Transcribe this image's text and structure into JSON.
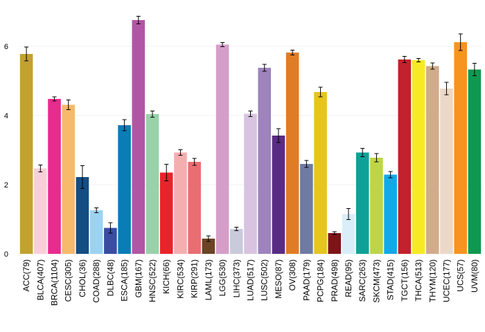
{
  "chart_data": {
    "type": "bar",
    "categories": [
      "ACC(79)",
      "BLCA(407)",
      "BRCA(1104)",
      "CESC(305)",
      "CHOL(36)",
      "COAD(288)",
      "DLBC(48)",
      "ESCA(185)",
      "GBM(167)",
      "HNSC(522)",
      "KICH(66)",
      "KIRC(534)",
      "KIRP(291)",
      "LAML(173)",
      "LGG(530)",
      "LIHC(373)",
      "LUAD(517)",
      "LUSC(502)",
      "MESO(87)",
      "OV(308)",
      "PAAD(179)",
      "PCPG(184)",
      "PRAD(498)",
      "READ(95)",
      "SARC(263)",
      "SKCM(473)",
      "STAD(415)",
      "TGCT(156)",
      "THCA(513)",
      "THYM(120)",
      "UCEC(177)",
      "UCS(57)",
      "UVM(80)"
    ],
    "values": [
      5.78,
      2.47,
      4.48,
      4.31,
      2.22,
      1.26,
      0.75,
      3.72,
      6.76,
      4.04,
      2.35,
      2.93,
      2.66,
      0.44,
      6.05,
      0.72,
      4.05,
      5.38,
      3.42,
      5.82,
      2.6,
      4.68,
      0.6,
      1.15,
      2.93,
      2.78,
      2.29,
      5.62,
      5.6,
      5.43,
      4.78,
      6.12,
      5.33
    ],
    "errors": [
      0.2,
      0.1,
      0.06,
      0.14,
      0.33,
      0.07,
      0.15,
      0.16,
      0.11,
      0.09,
      0.24,
      0.08,
      0.1,
      0.08,
      0.06,
      0.05,
      0.08,
      0.1,
      0.2,
      0.07,
      0.1,
      0.14,
      0.04,
      0.16,
      0.12,
      0.12,
      0.09,
      0.09,
      0.05,
      0.09,
      0.18,
      0.24,
      0.18
    ],
    "colors": [
      "#c2a22f",
      "#f9cfd7",
      "#e82b8e",
      "#f7b96b",
      "#144d82",
      "#9bd4f2",
      "#3a4da1",
      "#0a7db6",
      "#b156a4",
      "#98d1aa",
      "#e8242a",
      "#f5aeb0",
      "#e86e72",
      "#6b4423",
      "#d59ec9",
      "#c9cbdc",
      "#d8c4e0",
      "#9e83bd",
      "#582c83",
      "#e07c25",
      "#6f7ba2",
      "#e6c51c",
      "#7d1518",
      "#d9eef9",
      "#0fa197",
      "#bdd646",
      "#11a9e6",
      "#c2212d",
      "#f7ea23",
      "#d2ab8b",
      "#ecd8c8",
      "#f6941f",
      "#0f9850"
    ],
    "ylim": [
      0,
      7
    ],
    "yticks": [
      0,
      2,
      4,
      6
    ],
    "grid": true,
    "legend": "none",
    "title": "",
    "xlabel": "",
    "ylabel": ""
  }
}
